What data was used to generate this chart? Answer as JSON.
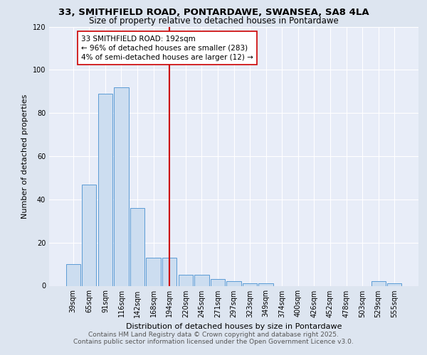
{
  "title1": "33, SMITHFIELD ROAD, PONTARDAWE, SWANSEA, SA8 4LA",
  "title2": "Size of property relative to detached houses in Pontardawe",
  "xlabel": "Distribution of detached houses by size in Pontardawe",
  "ylabel": "Number of detached properties",
  "categories": [
    "39sqm",
    "65sqm",
    "91sqm",
    "116sqm",
    "142sqm",
    "168sqm",
    "194sqm",
    "220sqm",
    "245sqm",
    "271sqm",
    "297sqm",
    "323sqm",
    "349sqm",
    "374sqm",
    "400sqm",
    "426sqm",
    "452sqm",
    "478sqm",
    "503sqm",
    "529sqm",
    "555sqm"
  ],
  "values": [
    10,
    47,
    89,
    92,
    36,
    13,
    13,
    5,
    5,
    3,
    2,
    1,
    1,
    0,
    0,
    0,
    0,
    0,
    0,
    2,
    1
  ],
  "bar_color": "#ccddf0",
  "bar_edge_color": "#5b9bd5",
  "vline_x_index": 6,
  "vline_color": "#cc0000",
  "annotation_title": "33 SMITHFIELD ROAD: 192sqm",
  "annotation_line1": "← 96% of detached houses are smaller (283)",
  "annotation_line2": "4% of semi-detached houses are larger (12) →",
  "annotation_box_color": "#ffffff",
  "annotation_box_edge": "#cc0000",
  "ylim": [
    0,
    120
  ],
  "yticks": [
    0,
    20,
    40,
    60,
    80,
    100,
    120
  ],
  "footnote1": "Contains HM Land Registry data © Crown copyright and database right 2025.",
  "footnote2": "Contains public sector information licensed under the Open Government Licence v3.0.",
  "bg_color": "#dde5f0",
  "plot_bg_color": "#e8edf8",
  "title1_fontsize": 9.5,
  "title2_fontsize": 8.5,
  "xlabel_fontsize": 8,
  "ylabel_fontsize": 8,
  "tick_fontsize": 7,
  "footnote_fontsize": 6.5,
  "annotation_fontsize": 7.5
}
